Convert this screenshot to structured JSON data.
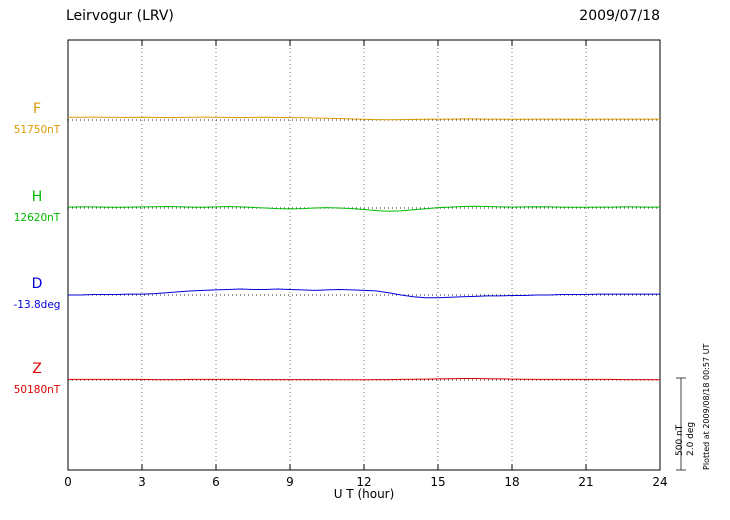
{
  "chart_data": {
    "type": "line",
    "title": "Leirvogur (LRV)",
    "date": "2009/07/18",
    "xlabel": "U T (hour)",
    "x_range": [
      0,
      24
    ],
    "x_ticks": [
      0,
      3,
      6,
      9,
      12,
      15,
      18,
      21,
      24
    ],
    "sample_interval_hours": 0.5,
    "grid": "vertical-dotted",
    "scale_bar": {
      "label_nt": "500 nT",
      "label_deg": "2.0 deg",
      "nT_per_bar": 500,
      "deg_per_bar": 2.0
    },
    "plotted_note": "Plotted at 2009/08/18 00:57 UT",
    "series": [
      {
        "name": "F",
        "label": "F",
        "baseline_label": "51750nT",
        "baseline": 51750,
        "unit": "nT",
        "color": "#dd9900",
        "offsets": [
          15,
          15,
          16,
          15,
          14,
          14,
          15,
          14,
          13,
          14,
          15,
          16,
          15,
          14,
          13,
          14,
          15,
          14,
          13,
          12,
          11,
          10,
          8,
          6,
          4,
          2,
          1,
          2,
          3,
          4,
          5,
          5,
          6,
          6,
          5,
          5,
          4,
          4,
          5,
          5,
          5,
          4,
          4,
          5,
          5,
          5,
          5,
          5,
          5
        ]
      },
      {
        "name": "H",
        "label": "H",
        "baseline_label": "12620nT",
        "baseline": 12620,
        "unit": "nT",
        "color": "#00bb00",
        "offsets": [
          5,
          6,
          6,
          5,
          4,
          5,
          6,
          7,
          8,
          7,
          5,
          4,
          6,
          8,
          6,
          3,
          0,
          -3,
          -5,
          -3,
          0,
          2,
          0,
          -3,
          -8,
          -14,
          -18,
          -16,
          -10,
          -4,
          2,
          5,
          8,
          9,
          8,
          6,
          5,
          6,
          7,
          6,
          5,
          4,
          4,
          5,
          5,
          6,
          6,
          5,
          5
        ]
      },
      {
        "name": "D",
        "label": "D",
        "baseline_label": "-13.8deg",
        "baseline": -13.8,
        "unit": "deg",
        "color": "#0000dd",
        "offsets": [
          0,
          0,
          0.01,
          0.01,
          0.01,
          0.02,
          0.02,
          0.03,
          0.05,
          0.07,
          0.09,
          0.1,
          0.11,
          0.12,
          0.13,
          0.12,
          0.12,
          0.13,
          0.12,
          0.11,
          0.1,
          0.11,
          0.12,
          0.11,
          0.1,
          0.09,
          0.05,
          0,
          -0.04,
          -0.06,
          -0.06,
          -0.05,
          -0.04,
          -0.03,
          -0.02,
          -0.02,
          -0.01,
          -0.01,
          0,
          0,
          0.01,
          0.01,
          0.01,
          0.02,
          0.02,
          0.02,
          0.02,
          0.02,
          0.02
        ]
      },
      {
        "name": "Z",
        "label": "Z",
        "baseline_label": "50180nT",
        "baseline": 50180,
        "unit": "nT",
        "color": "#dd0000",
        "offsets": [
          3,
          3,
          3,
          3,
          3,
          3,
          3,
          2,
          2,
          2,
          3,
          3,
          3,
          3,
          3,
          2,
          2,
          2,
          2,
          2,
          2,
          2,
          1,
          1,
          1,
          2,
          2,
          3,
          4,
          5,
          6,
          7,
          8,
          8,
          7,
          6,
          5,
          4,
          3,
          3,
          3,
          3,
          3,
          3,
          3,
          2,
          2,
          2,
          1
        ]
      }
    ]
  }
}
